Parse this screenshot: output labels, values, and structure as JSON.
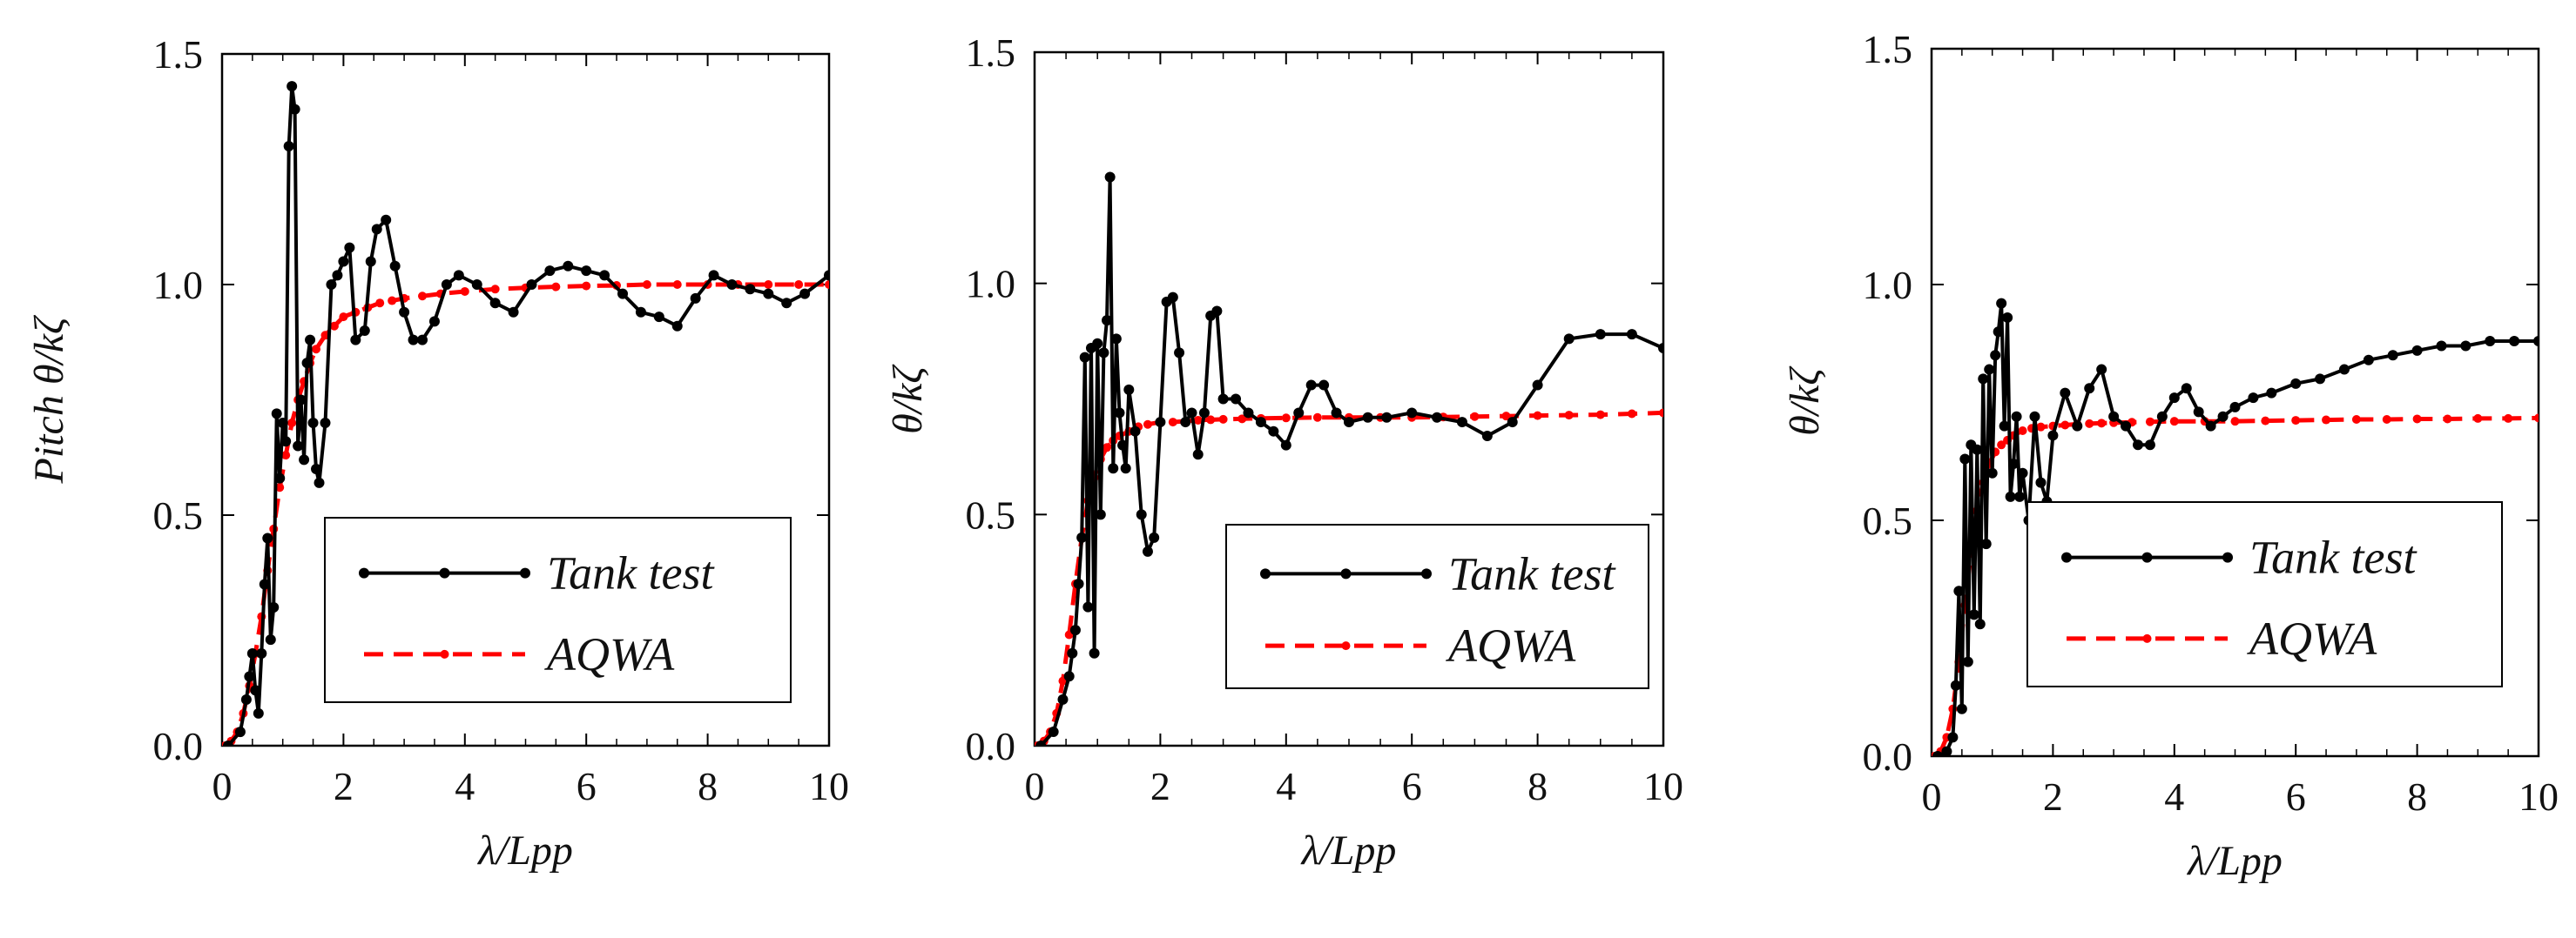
{
  "colors": {
    "tank": "#000000",
    "aqwa": "#ff0000",
    "axis": "#000000",
    "background": "#ffffff"
  },
  "chart_data": [
    {
      "type": "line",
      "title": "",
      "xlabel": "λ/Lpp",
      "ylabel": "Pitch θ/kζ",
      "xlim": [
        0,
        10
      ],
      "ylim": [
        0,
        1.5
      ],
      "xticks": [
        "0",
        "2",
        "4",
        "6",
        "8",
        "10"
      ],
      "yticks": [
        "0.0",
        "0.5",
        "1.0",
        "1.5"
      ],
      "grid": false,
      "legend_position": "bottom-right",
      "series": [
        {
          "name": "Tank test",
          "style": "solid-markers",
          "x": [
            0.1,
            0.3,
            0.4,
            0.45,
            0.5,
            0.55,
            0.6,
            0.65,
            0.7,
            0.75,
            0.8,
            0.85,
            0.9,
            0.95,
            1.0,
            1.05,
            1.1,
            1.15,
            1.2,
            1.25,
            1.3,
            1.35,
            1.4,
            1.45,
            1.5,
            1.55,
            1.6,
            1.7,
            1.8,
            1.9,
            2.0,
            2.1,
            2.2,
            2.35,
            2.45,
            2.55,
            2.7,
            2.85,
            3.0,
            3.15,
            3.3,
            3.5,
            3.7,
            3.9,
            4.2,
            4.5,
            4.8,
            5.1,
            5.4,
            5.7,
            6.0,
            6.3,
            6.6,
            6.9,
            7.2,
            7.5,
            7.8,
            8.1,
            8.4,
            8.7,
            9.0,
            9.3,
            9.6,
            10.0
          ],
          "y": [
            0.0,
            0.03,
            0.1,
            0.15,
            0.2,
            0.12,
            0.07,
            0.2,
            0.35,
            0.45,
            0.23,
            0.3,
            0.72,
            0.58,
            0.7,
            0.66,
            1.3,
            1.43,
            1.38,
            0.65,
            0.75,
            0.62,
            0.83,
            0.88,
            0.7,
            0.6,
            0.57,
            0.7,
            1.0,
            1.02,
            1.05,
            1.08,
            0.88,
            0.9,
            1.05,
            1.12,
            1.14,
            1.04,
            0.94,
            0.88,
            0.88,
            0.92,
            1.0,
            1.02,
            1.0,
            0.96,
            0.94,
            1.0,
            1.03,
            1.04,
            1.03,
            1.02,
            0.98,
            0.94,
            0.93,
            0.91,
            0.97,
            1.02,
            1.0,
            0.99,
            0.98,
            0.96,
            0.98,
            1.02
          ]
        },
        {
          "name": "AQWA",
          "style": "dashed-markers",
          "x": [
            0.05,
            0.15,
            0.25,
            0.35,
            0.45,
            0.55,
            0.65,
            0.75,
            0.85,
            0.95,
            1.05,
            1.15,
            1.25,
            1.35,
            1.45,
            1.55,
            1.7,
            1.85,
            2.0,
            2.2,
            2.4,
            2.6,
            2.8,
            3.0,
            3.3,
            3.6,
            4.0,
            4.5,
            5.0,
            5.5,
            6.0,
            6.5,
            7.0,
            7.5,
            8.0,
            8.5,
            9.0,
            9.5,
            10.0
          ],
          "y": [
            0.0,
            0.01,
            0.03,
            0.07,
            0.13,
            0.2,
            0.28,
            0.38,
            0.47,
            0.56,
            0.63,
            0.7,
            0.75,
            0.79,
            0.83,
            0.86,
            0.89,
            0.91,
            0.93,
            0.94,
            0.95,
            0.96,
            0.965,
            0.97,
            0.975,
            0.98,
            0.985,
            0.99,
            0.993,
            0.995,
            0.997,
            0.998,
            1.0,
            1.0,
            1.0,
            1.0,
            1.0,
            1.0,
            1.0
          ]
        }
      ]
    },
    {
      "type": "line",
      "title": "",
      "xlabel": "λ/Lpp",
      "ylabel": "θ/kζ",
      "xlim": [
        0,
        10
      ],
      "ylim": [
        0,
        1.5
      ],
      "xticks": [
        "0",
        "2",
        "4",
        "6",
        "8",
        "10"
      ],
      "yticks": [
        "0.0",
        "0.5",
        "1.0",
        "1.5"
      ],
      "grid": false,
      "legend_position": "bottom-right",
      "series": [
        {
          "name": "Tank test",
          "style": "solid-markers",
          "x": [
            0.1,
            0.3,
            0.45,
            0.55,
            0.6,
            0.65,
            0.7,
            0.75,
            0.8,
            0.85,
            0.9,
            0.95,
            1.0,
            1.05,
            1.1,
            1.15,
            1.2,
            1.25,
            1.3,
            1.35,
            1.4,
            1.45,
            1.5,
            1.6,
            1.7,
            1.8,
            1.9,
            2.0,
            2.1,
            2.2,
            2.3,
            2.4,
            2.5,
            2.6,
            2.7,
            2.8,
            2.9,
            3.0,
            3.2,
            3.4,
            3.6,
            3.8,
            4.0,
            4.2,
            4.4,
            4.6,
            4.8,
            5.0,
            5.3,
            5.6,
            6.0,
            6.4,
            6.8,
            7.2,
            7.6,
            8.0,
            8.5,
            9.0,
            9.5,
            10.0
          ],
          "y": [
            0.0,
            0.03,
            0.1,
            0.15,
            0.2,
            0.25,
            0.35,
            0.45,
            0.84,
            0.3,
            0.86,
            0.2,
            0.87,
            0.5,
            0.85,
            0.92,
            1.23,
            0.6,
            0.88,
            0.72,
            0.65,
            0.6,
            0.77,
            0.68,
            0.5,
            0.42,
            0.45,
            0.7,
            0.96,
            0.97,
            0.85,
            0.7,
            0.72,
            0.63,
            0.72,
            0.93,
            0.94,
            0.75,
            0.75,
            0.72,
            0.7,
            0.68,
            0.65,
            0.72,
            0.78,
            0.78,
            0.72,
            0.7,
            0.71,
            0.71,
            0.72,
            0.71,
            0.7,
            0.67,
            0.7,
            0.78,
            0.88,
            0.89,
            0.89,
            0.86
          ]
        },
        {
          "name": "AQWA",
          "style": "dashed-markers",
          "x": [
            0.05,
            0.15,
            0.25,
            0.35,
            0.45,
            0.55,
            0.65,
            0.75,
            0.85,
            0.95,
            1.05,
            1.15,
            1.25,
            1.35,
            1.5,
            1.65,
            1.8,
            2.0,
            2.2,
            2.4,
            2.6,
            2.8,
            3.0,
            3.3,
            3.6,
            4.0,
            4.5,
            5.0,
            5.5,
            6.0,
            6.5,
            7.0,
            7.5,
            8.0,
            8.5,
            9.0,
            9.5,
            10.0
          ],
          "y": [
            0.0,
            0.01,
            0.03,
            0.07,
            0.14,
            0.24,
            0.35,
            0.45,
            0.53,
            0.58,
            0.62,
            0.645,
            0.66,
            0.67,
            0.68,
            0.69,
            0.695,
            0.7,
            0.7,
            0.702,
            0.704,
            0.705,
            0.706,
            0.707,
            0.708,
            0.709,
            0.71,
            0.71,
            0.71,
            0.71,
            0.711,
            0.712,
            0.713,
            0.714,
            0.715,
            0.716,
            0.718,
            0.72
          ]
        }
      ]
    },
    {
      "type": "line",
      "title": "",
      "xlabel": "λ/Lpp",
      "ylabel": "θ/kζ",
      "xlim": [
        0,
        10
      ],
      "ylim": [
        0,
        1.5
      ],
      "xticks": [
        "0",
        "2",
        "4",
        "6",
        "8",
        "10"
      ],
      "yticks": [
        "0.0",
        "0.5",
        "1.0",
        "1.5"
      ],
      "grid": false,
      "legend_position": "bottom-right",
      "series": [
        {
          "name": "Tank test",
          "style": "solid-markers",
          "x": [
            0.1,
            0.25,
            0.35,
            0.4,
            0.45,
            0.5,
            0.55,
            0.6,
            0.65,
            0.7,
            0.75,
            0.8,
            0.85,
            0.9,
            0.95,
            1.0,
            1.05,
            1.1,
            1.15,
            1.2,
            1.25,
            1.3,
            1.35,
            1.4,
            1.45,
            1.5,
            1.6,
            1.7,
            1.8,
            1.9,
            2.0,
            2.2,
            2.4,
            2.6,
            2.8,
            3.0,
            3.2,
            3.4,
            3.6,
            3.8,
            4.0,
            4.2,
            4.4,
            4.6,
            4.8,
            5.0,
            5.3,
            5.6,
            6.0,
            6.4,
            6.8,
            7.2,
            7.6,
            8.0,
            8.4,
            8.8,
            9.2,
            9.6,
            10.0
          ],
          "y": [
            0.0,
            0.01,
            0.04,
            0.15,
            0.35,
            0.1,
            0.63,
            0.2,
            0.66,
            0.3,
            0.65,
            0.28,
            0.8,
            0.45,
            0.82,
            0.6,
            0.85,
            0.9,
            0.96,
            0.7,
            0.93,
            0.55,
            0.62,
            0.72,
            0.55,
            0.6,
            0.5,
            0.72,
            0.58,
            0.54,
            0.68,
            0.77,
            0.7,
            0.78,
            0.82,
            0.72,
            0.7,
            0.66,
            0.66,
            0.72,
            0.76,
            0.78,
            0.73,
            0.7,
            0.72,
            0.74,
            0.76,
            0.77,
            0.79,
            0.8,
            0.82,
            0.84,
            0.85,
            0.86,
            0.87,
            0.87,
            0.88,
            0.88,
            0.88
          ]
        },
        {
          "name": "AQWA",
          "style": "dashed-markers",
          "x": [
            0.05,
            0.15,
            0.25,
            0.35,
            0.45,
            0.55,
            0.65,
            0.75,
            0.85,
            0.95,
            1.05,
            1.15,
            1.25,
            1.35,
            1.5,
            1.65,
            1.8,
            2.0,
            2.2,
            2.4,
            2.6,
            2.8,
            3.0,
            3.3,
            3.6,
            4.0,
            4.5,
            5.0,
            5.5,
            6.0,
            6.5,
            7.0,
            7.5,
            8.0,
            8.5,
            9.0,
            9.5,
            10.0
          ],
          "y": [
            0.0,
            0.01,
            0.04,
            0.1,
            0.2,
            0.32,
            0.43,
            0.52,
            0.58,
            0.62,
            0.645,
            0.66,
            0.67,
            0.68,
            0.69,
            0.695,
            0.698,
            0.7,
            0.702,
            0.704,
            0.705,
            0.706,
            0.707,
            0.708,
            0.709,
            0.71,
            0.71,
            0.71,
            0.711,
            0.712,
            0.713,
            0.714,
            0.714,
            0.715,
            0.715,
            0.716,
            0.716,
            0.717
          ]
        }
      ]
    }
  ]
}
